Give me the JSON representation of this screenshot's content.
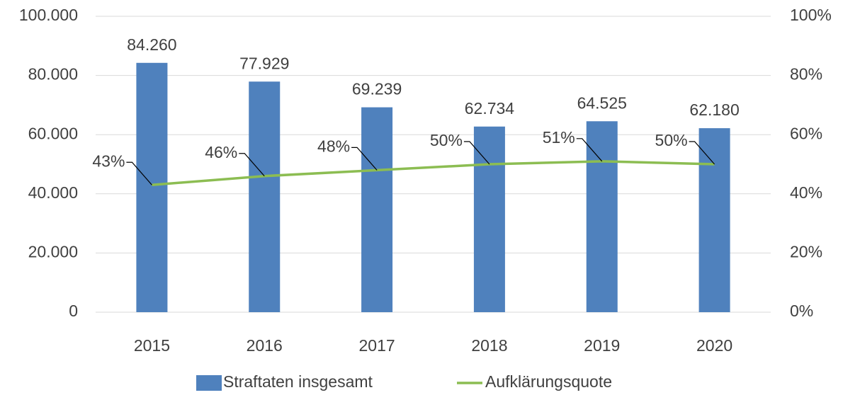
{
  "chart_data": {
    "type": "bar",
    "categories": [
      "2015",
      "2016",
      "2017",
      "2018",
      "2019",
      "2020"
    ],
    "series": [
      {
        "name": "Straftaten insgesamt",
        "color": "#4f81bd",
        "type": "bar",
        "values": [
          84260,
          77929,
          69239,
          62734,
          64525,
          62180
        ],
        "value_labels": [
          "84.260",
          "77.929",
          "69.239",
          "62.734",
          "64.525",
          "62.180"
        ]
      },
      {
        "name": "Aufklärungsquote",
        "color": "#8cbd52",
        "type": "line",
        "axis": "y2",
        "values": [
          43,
          46,
          48,
          50,
          51,
          50
        ],
        "value_labels": [
          "43%",
          "46%",
          "48%",
          "50%",
          "51%",
          "50%"
        ]
      }
    ],
    "ylim": [
      0,
      100000
    ],
    "yticks": [
      0,
      {
        "value": 20000,
        "label": "20.000"
      },
      {
        "value": 40000,
        "label": "40.000"
      },
      {
        "value": 60000,
        "label": "60.000"
      },
      {
        "value": 80000,
        "label": "80.000"
      },
      {
        "value": 100000,
        "label": "100.000"
      }
    ],
    "y2lim": [
      0,
      100
    ],
    "y2ticks": [
      {
        "value": 0,
        "label": "0%"
      },
      {
        "value": 20,
        "label": "20%"
      },
      {
        "value": 40,
        "label": "40%"
      },
      {
        "value": 60,
        "label": "60%"
      },
      {
        "value": 80,
        "label": "80%"
      },
      {
        "value": 100,
        "label": "100%"
      }
    ],
    "grid": true,
    "legend": "bottom"
  }
}
